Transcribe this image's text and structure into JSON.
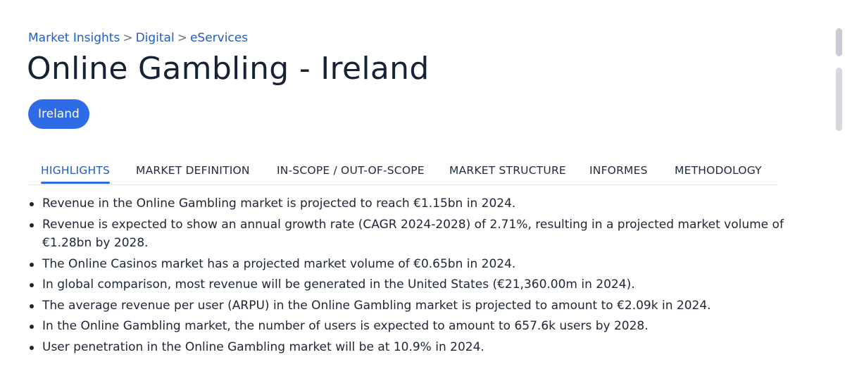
{
  "breadcrumb": {
    "items": [
      "Market Insights",
      "Digital",
      "eServices"
    ],
    "separator": ">"
  },
  "page_title": "Online Gambling - Ireland",
  "region_chip": "Ireland",
  "tabs": [
    {
      "label": "HIGHLIGHTS",
      "active": true
    },
    {
      "label": "MARKET DEFINITION",
      "active": false
    },
    {
      "label": "IN-SCOPE / OUT-OF-SCOPE",
      "active": false
    },
    {
      "label": "MARKET STRUCTURE",
      "active": false
    },
    {
      "label": "INFORMES",
      "active": false
    },
    {
      "label": "METHODOLOGY",
      "active": false
    }
  ],
  "highlights": [
    "Revenue in the Online Gambling market is projected to reach €1.15bn in 2024.",
    "Revenue is expected to show an annual growth rate (CAGR 2024-2028) of 2.71%, resulting in a projected market volume of €1.28bn by 2028.",
    "The Online Casinos market has a projected market volume of €0.65bn in 2024.",
    "In global comparison, most revenue will be generated in the United States (€21,360.00m in 2024).",
    "The average revenue per user (ARPU) in the Online Gambling market is projected to amount to €2.09k in 2024.",
    "In the Online Gambling market, the number of users is expected to amount to 657.6k users by 2028.",
    "User penetration in the Online Gambling market will be at 10.9% in 2024."
  ],
  "colors": {
    "accent": "#2e6be6",
    "link": "#1f5cc4",
    "text": "#1c2635"
  }
}
